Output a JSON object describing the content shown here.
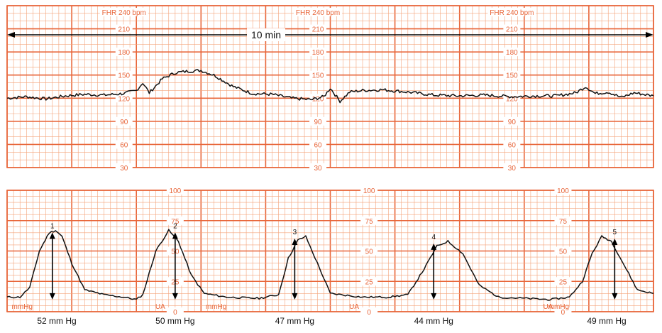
{
  "chart_data": [
    {
      "type": "line",
      "title": "",
      "scale_label": "FHR 240 bpm",
      "ylim": [
        30,
        240
      ],
      "yticks": [
        30,
        60,
        90,
        120,
        150,
        180,
        210
      ],
      "interval_label": "10 min",
      "x_minutes": [
        0.0,
        0.3,
        0.6,
        0.9,
        1.2,
        1.5,
        1.8,
        2.0,
        2.1,
        2.2,
        2.4,
        2.6,
        2.8,
        3.0,
        3.2,
        3.5,
        3.8,
        4.1,
        4.4,
        4.7,
        4.9,
        5.0,
        5.15,
        5.3,
        5.5,
        5.8,
        6.2,
        6.6,
        7.0,
        7.4,
        7.8,
        8.2,
        8.5,
        8.8,
        8.95,
        9.1,
        9.3,
        9.5,
        9.7,
        10.0
      ],
      "y_bpm": [
        120,
        122,
        119,
        123,
        125,
        124,
        126,
        130,
        140,
        127,
        145,
        153,
        155,
        156,
        150,
        135,
        126,
        125,
        120,
        118,
        122,
        133,
        116,
        128,
        130,
        131,
        128,
        124,
        123,
        124,
        122,
        123,
        123,
        127,
        135,
        126,
        128,
        121,
        127,
        123
      ],
      "line_color": "#111111",
      "grid_color": "#e8663a"
    },
    {
      "type": "line",
      "title": "",
      "scale_label": "UA",
      "unit_label": "mmHg",
      "ylim": [
        0,
        100
      ],
      "yticks": [
        0,
        25,
        50,
        75,
        100
      ],
      "x_minutes": [
        0.0,
        0.2,
        0.35,
        0.5,
        0.65,
        0.75,
        0.85,
        1.0,
        1.2,
        1.5,
        1.8,
        2.0,
        2.1,
        2.3,
        2.5,
        2.65,
        2.85,
        3.05,
        3.4,
        3.9,
        4.2,
        4.35,
        4.5,
        4.62,
        4.8,
        5.0,
        5.5,
        5.9,
        6.2,
        6.45,
        6.65,
        6.82,
        7.05,
        7.3,
        7.6,
        8.0,
        8.4,
        8.7,
        8.9,
        9.05,
        9.2,
        9.35,
        9.55,
        9.75,
        10.0
      ],
      "y_mmHg": [
        12,
        12,
        20,
        50,
        65,
        67,
        62,
        40,
        18,
        14,
        12,
        10,
        14,
        50,
        67,
        58,
        30,
        15,
        12,
        11,
        14,
        44,
        59,
        62,
        40,
        15,
        12,
        12,
        14,
        35,
        54,
        58,
        48,
        22,
        12,
        11,
        10,
        12,
        25,
        48,
        62,
        58,
        38,
        18,
        15
      ],
      "contractions": [
        {
          "number": "1",
          "x_minute": 0.7,
          "peak_mmHg": 67,
          "label": "52 mm Hg"
        },
        {
          "number": "2",
          "x_minute": 2.6,
          "peak_mmHg": 67,
          "label": "50 mm Hg"
        },
        {
          "number": "3",
          "x_minute": 4.45,
          "peak_mmHg": 62,
          "label": "47 mm Hg"
        },
        {
          "number": "4",
          "x_minute": 6.6,
          "peak_mmHg": 58,
          "label": "44 mm Hg"
        },
        {
          "number": "5",
          "x_minute": 9.4,
          "peak_mmHg": 62,
          "label": "49 mm Hg"
        }
      ],
      "line_color": "#111111",
      "grid_color": "#e8663a"
    }
  ]
}
